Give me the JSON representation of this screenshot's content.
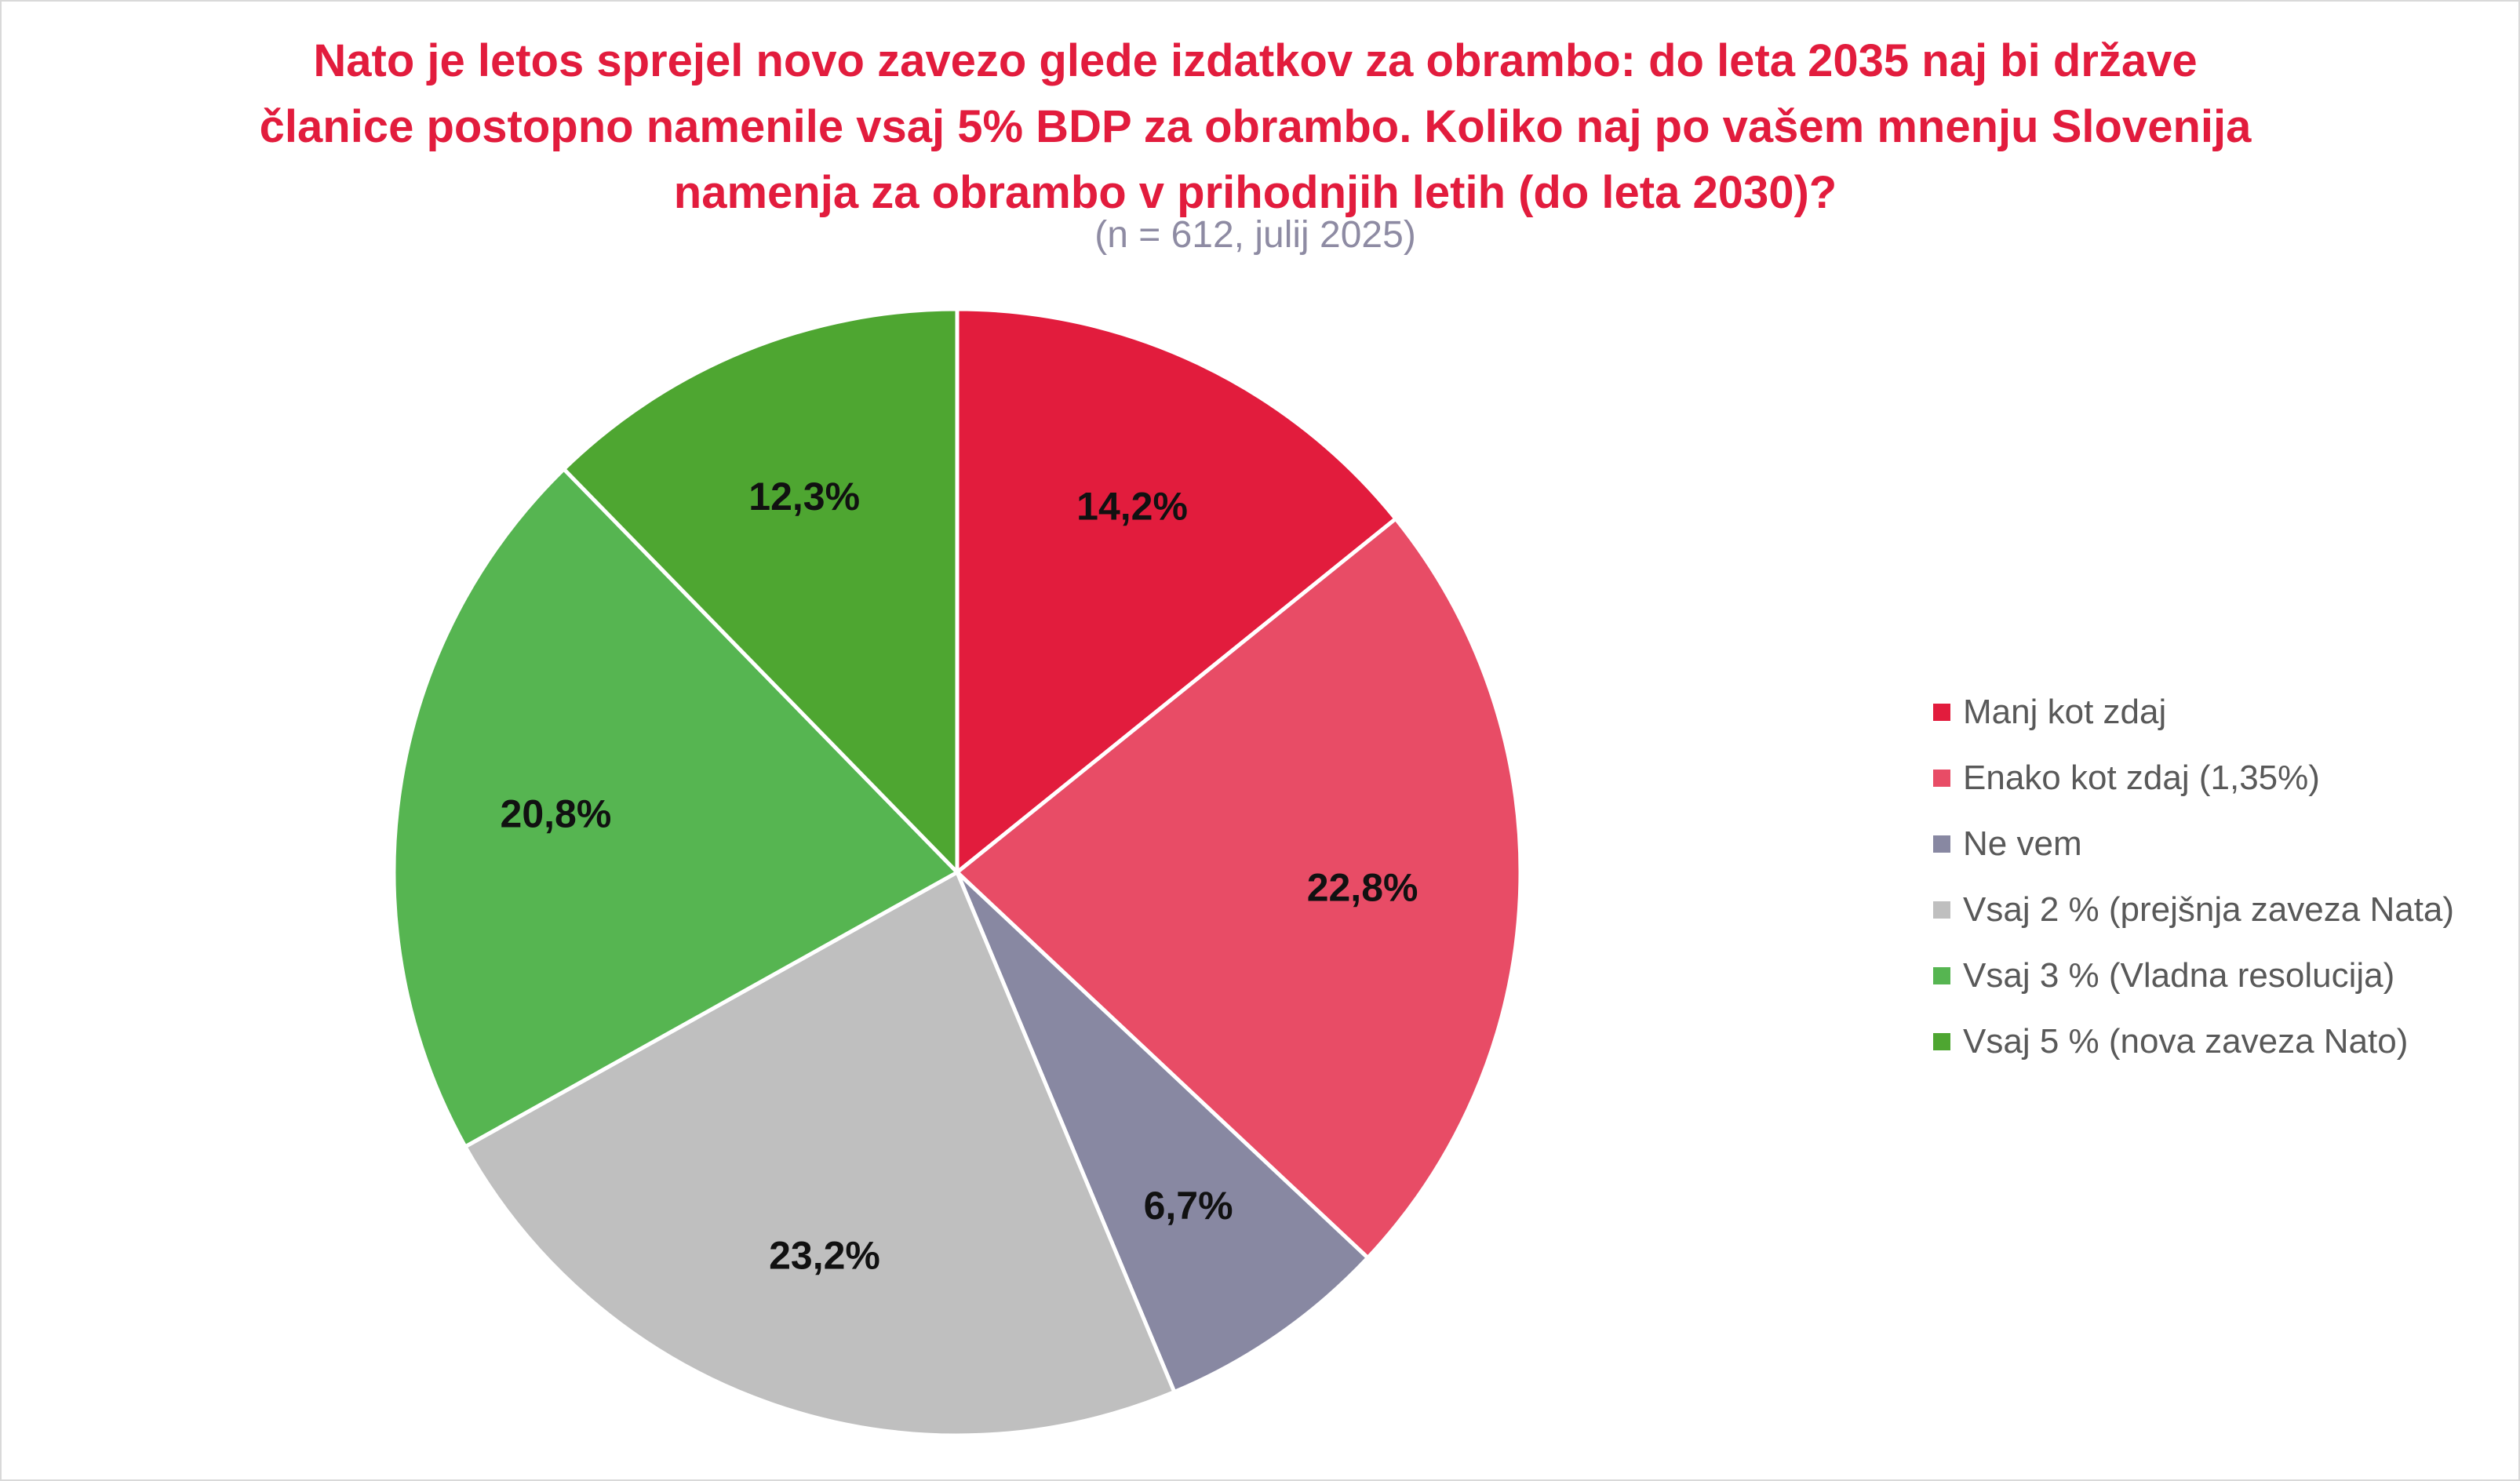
{
  "chart_data": {
    "type": "pie",
    "title": "Nato je letos sprejel novo zavezo glede izdatkov za obrambo: do leta 2035 naj bi države članice postopno namenile vsaj 5% BDP za obrambo. Koliko naj po vašem mnenju Slovenija namenja za obrambo v prihodnjih letih (do leta 2030)?",
    "subtitle": "(n = 612, julij 2025)",
    "categories": [
      "Manj kot zdaj",
      "Enako kot zdaj (1,35%)",
      "Ne vem",
      "Vsaj 2 % (prejšnja zaveza Nata)",
      "Vsaj 3 % (Vladna resolucija)",
      "Vsaj 5 % (nova zaveza Nato)"
    ],
    "values": [
      14.2,
      22.8,
      6.7,
      23.2,
      20.8,
      12.3
    ],
    "data_labels": [
      "14,2%",
      "22,8%",
      "6,7%",
      "23,2%",
      "20,8%",
      "12,3%"
    ],
    "colors": [
      "#e21c3d",
      "#e84c66",
      "#8888a2",
      "#bfbfbf",
      "#56b551",
      "#4ea631"
    ],
    "start_angle": "12 o'clock",
    "direction": "clockwise",
    "legend_position": "right"
  }
}
